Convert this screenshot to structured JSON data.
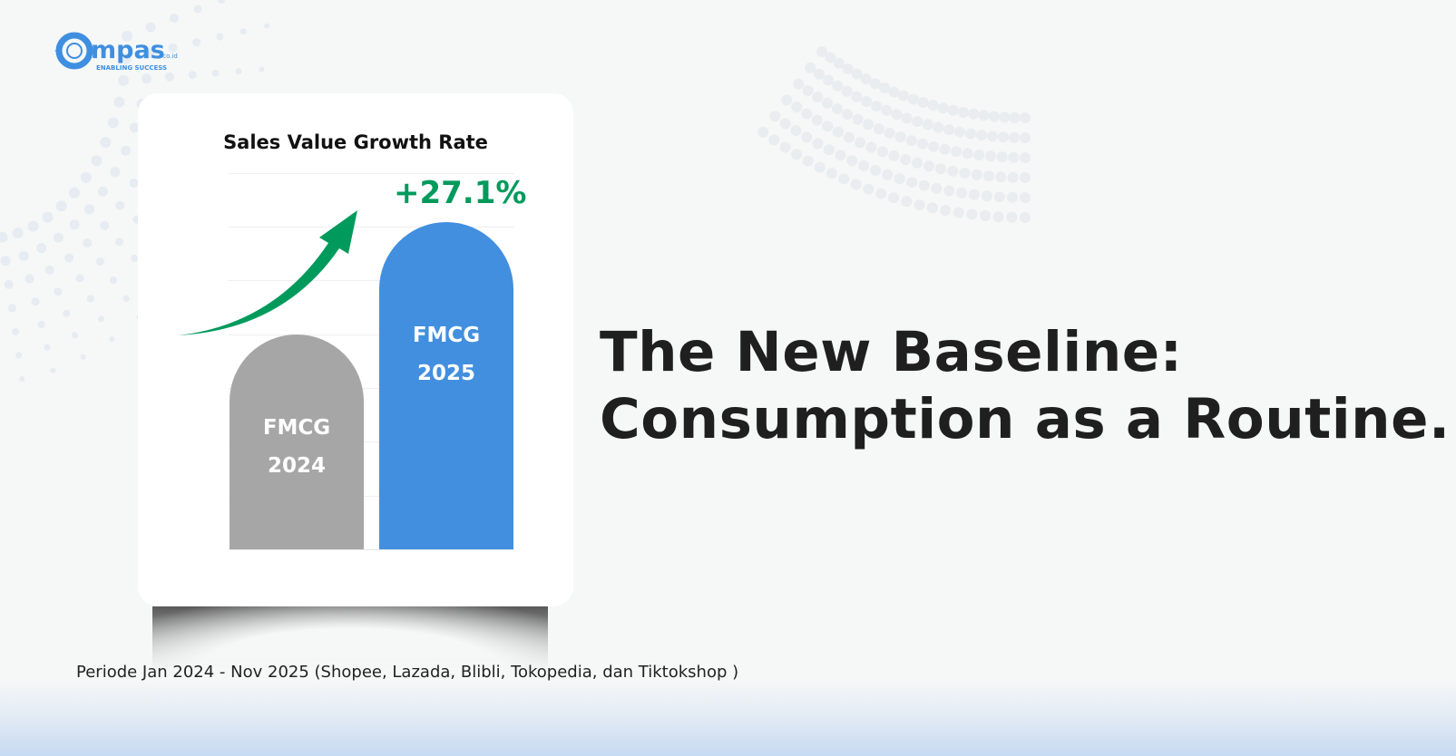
{
  "brand": {
    "logo_text": "Compas",
    "logo_suffix": ".co.id",
    "tagline": "ENABLING SUCCESS",
    "color": "#3f8fe0"
  },
  "chart_data": {
    "type": "bar",
    "title": "Sales Value Growth Rate",
    "categories": [
      "FMCG 2024",
      "FMCG 2025"
    ],
    "bars": [
      {
        "line1": "FMCG",
        "line2": "2024",
        "color": "#a6a6a6"
      },
      {
        "line1": "FMCG",
        "line2": "2025",
        "color": "#428fe0"
      }
    ],
    "annotation": "+27.1%",
    "annotation_color": "#009a5c",
    "growth_percent": 27.1,
    "grid": true
  },
  "headline": {
    "line1": "The New Baseline:",
    "line2": "Consumption as a Routine."
  },
  "footnote": "Periode Jan 2024 - Nov 2025 (Shopee, Lazada, Blibli, Tokopedia, dan Tiktokshop )"
}
